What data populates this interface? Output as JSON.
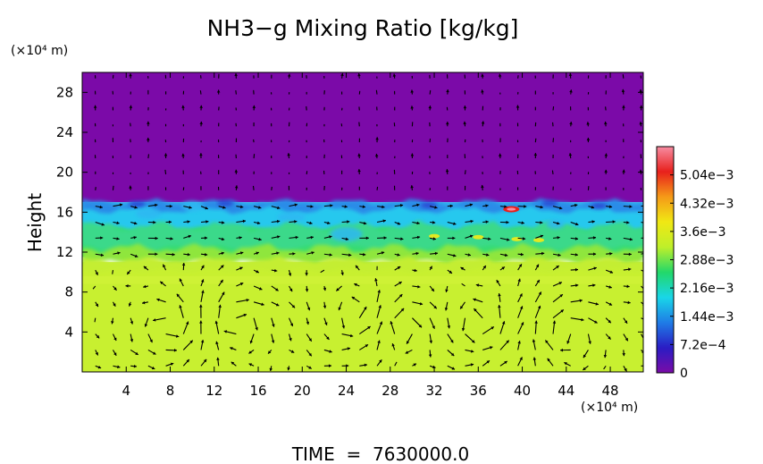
{
  "chart_data": {
    "type": "heatmap",
    "title": "NH3−g Mixing Ratio [kg/kg]",
    "ylabel": "Height",
    "y_unit_label": "(×10⁴ m)",
    "x_unit_label": "(×10⁴ m)",
    "footer": "TIME  =  7630000.0",
    "xlim": [
      0,
      51
    ],
    "ylim": [
      0,
      30
    ],
    "x_ticks": [
      "4",
      "8",
      "12",
      "16",
      "20",
      "24",
      "28",
      "32",
      "36",
      "40",
      "44",
      "48"
    ],
    "x_tick_values": [
      4,
      8,
      12,
      16,
      20,
      24,
      28,
      32,
      36,
      40,
      44,
      48
    ],
    "y_ticks": [
      "4",
      "8",
      "12",
      "16",
      "20",
      "24",
      "28"
    ],
    "y_tick_values": [
      4,
      8,
      12,
      16,
      20,
      24,
      28
    ],
    "colorbar": {
      "labels": [
        "5.04e−3",
        "4.32e−3",
        "3.6e−3",
        "2.88e−3",
        "2.16e−3",
        "1.44e−3",
        "7.2e−4",
        "0"
      ],
      "values": [
        0.00504,
        0.00432,
        0.0036,
        0.00288,
        0.00216,
        0.00144,
        0.00072,
        0
      ],
      "min": 0,
      "max": 0.00576,
      "colors": [
        "#7a0ca8",
        "#2a1cc4",
        "#1f7ce6",
        "#19d6e8",
        "#22d86a",
        "#bfef2a",
        "#f0e814",
        "#f59a18",
        "#e8201c",
        "#f78ca2"
      ]
    },
    "layers": [
      {
        "region": "upper atmosphere",
        "y_range": [
          17,
          30
        ],
        "value": 0,
        "color": "#7b0aa8"
      },
      {
        "region": "transition band",
        "y_range": [
          15,
          17
        ],
        "value": 0.0016,
        "color": "#30b4f0"
      },
      {
        "region": "mid layer",
        "y_range": [
          11.5,
          15
        ],
        "value": 0.0028,
        "color": "#35dc72"
      },
      {
        "region": "lower layer",
        "y_range": [
          0,
          11
        ],
        "value": 0.0038,
        "color": "#c8f030"
      }
    ],
    "hotspot": {
      "x": 39,
      "y": 16.3,
      "value": 0.0052
    },
    "vector_field": true,
    "grid": false
  }
}
